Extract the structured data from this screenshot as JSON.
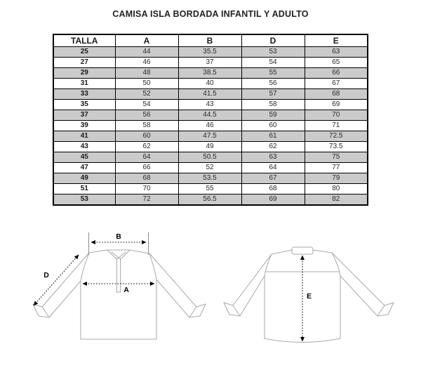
{
  "title": "CAMISA ISLA BORDADA INFANTIL Y ADULTO",
  "size_table": {
    "columns": [
      "TALLA",
      "A",
      "B",
      "D",
      "E"
    ],
    "rows": [
      [
        "25",
        "44",
        "35.5",
        "53",
        "63"
      ],
      [
        "27",
        "46",
        "37",
        "54",
        "65"
      ],
      [
        "29",
        "48",
        "38.5",
        "55",
        "66"
      ],
      [
        "31",
        "50",
        "40",
        "56",
        "67"
      ],
      [
        "33",
        "52",
        "41.5",
        "57",
        "68"
      ],
      [
        "35",
        "54",
        "43",
        "58",
        "69"
      ],
      [
        "37",
        "56",
        "44.5",
        "59",
        "70"
      ],
      [
        "39",
        "58",
        "46",
        "60",
        "71"
      ],
      [
        "41",
        "60",
        "47.5",
        "61",
        "72.5"
      ],
      [
        "43",
        "62",
        "49",
        "62",
        "73.5"
      ],
      [
        "45",
        "64",
        "50.5",
        "63",
        "75"
      ],
      [
        "47",
        "66",
        "52",
        "64",
        "77"
      ],
      [
        "49",
        "68",
        "53.5",
        "67",
        "79"
      ],
      [
        "51",
        "70",
        "55",
        "68",
        "80"
      ],
      [
        "53",
        "72",
        "56.5",
        "69",
        "82"
      ]
    ]
  },
  "diagram_front": {
    "label_b": "B",
    "label_d": "D",
    "label_a": "A"
  },
  "diagram_back": {
    "label_e": "E"
  },
  "colors": {
    "row_shade": "#cbcbcb",
    "table_border": "#000000",
    "shirt_outline": "#a8a8a8",
    "arrow": "#000000"
  }
}
